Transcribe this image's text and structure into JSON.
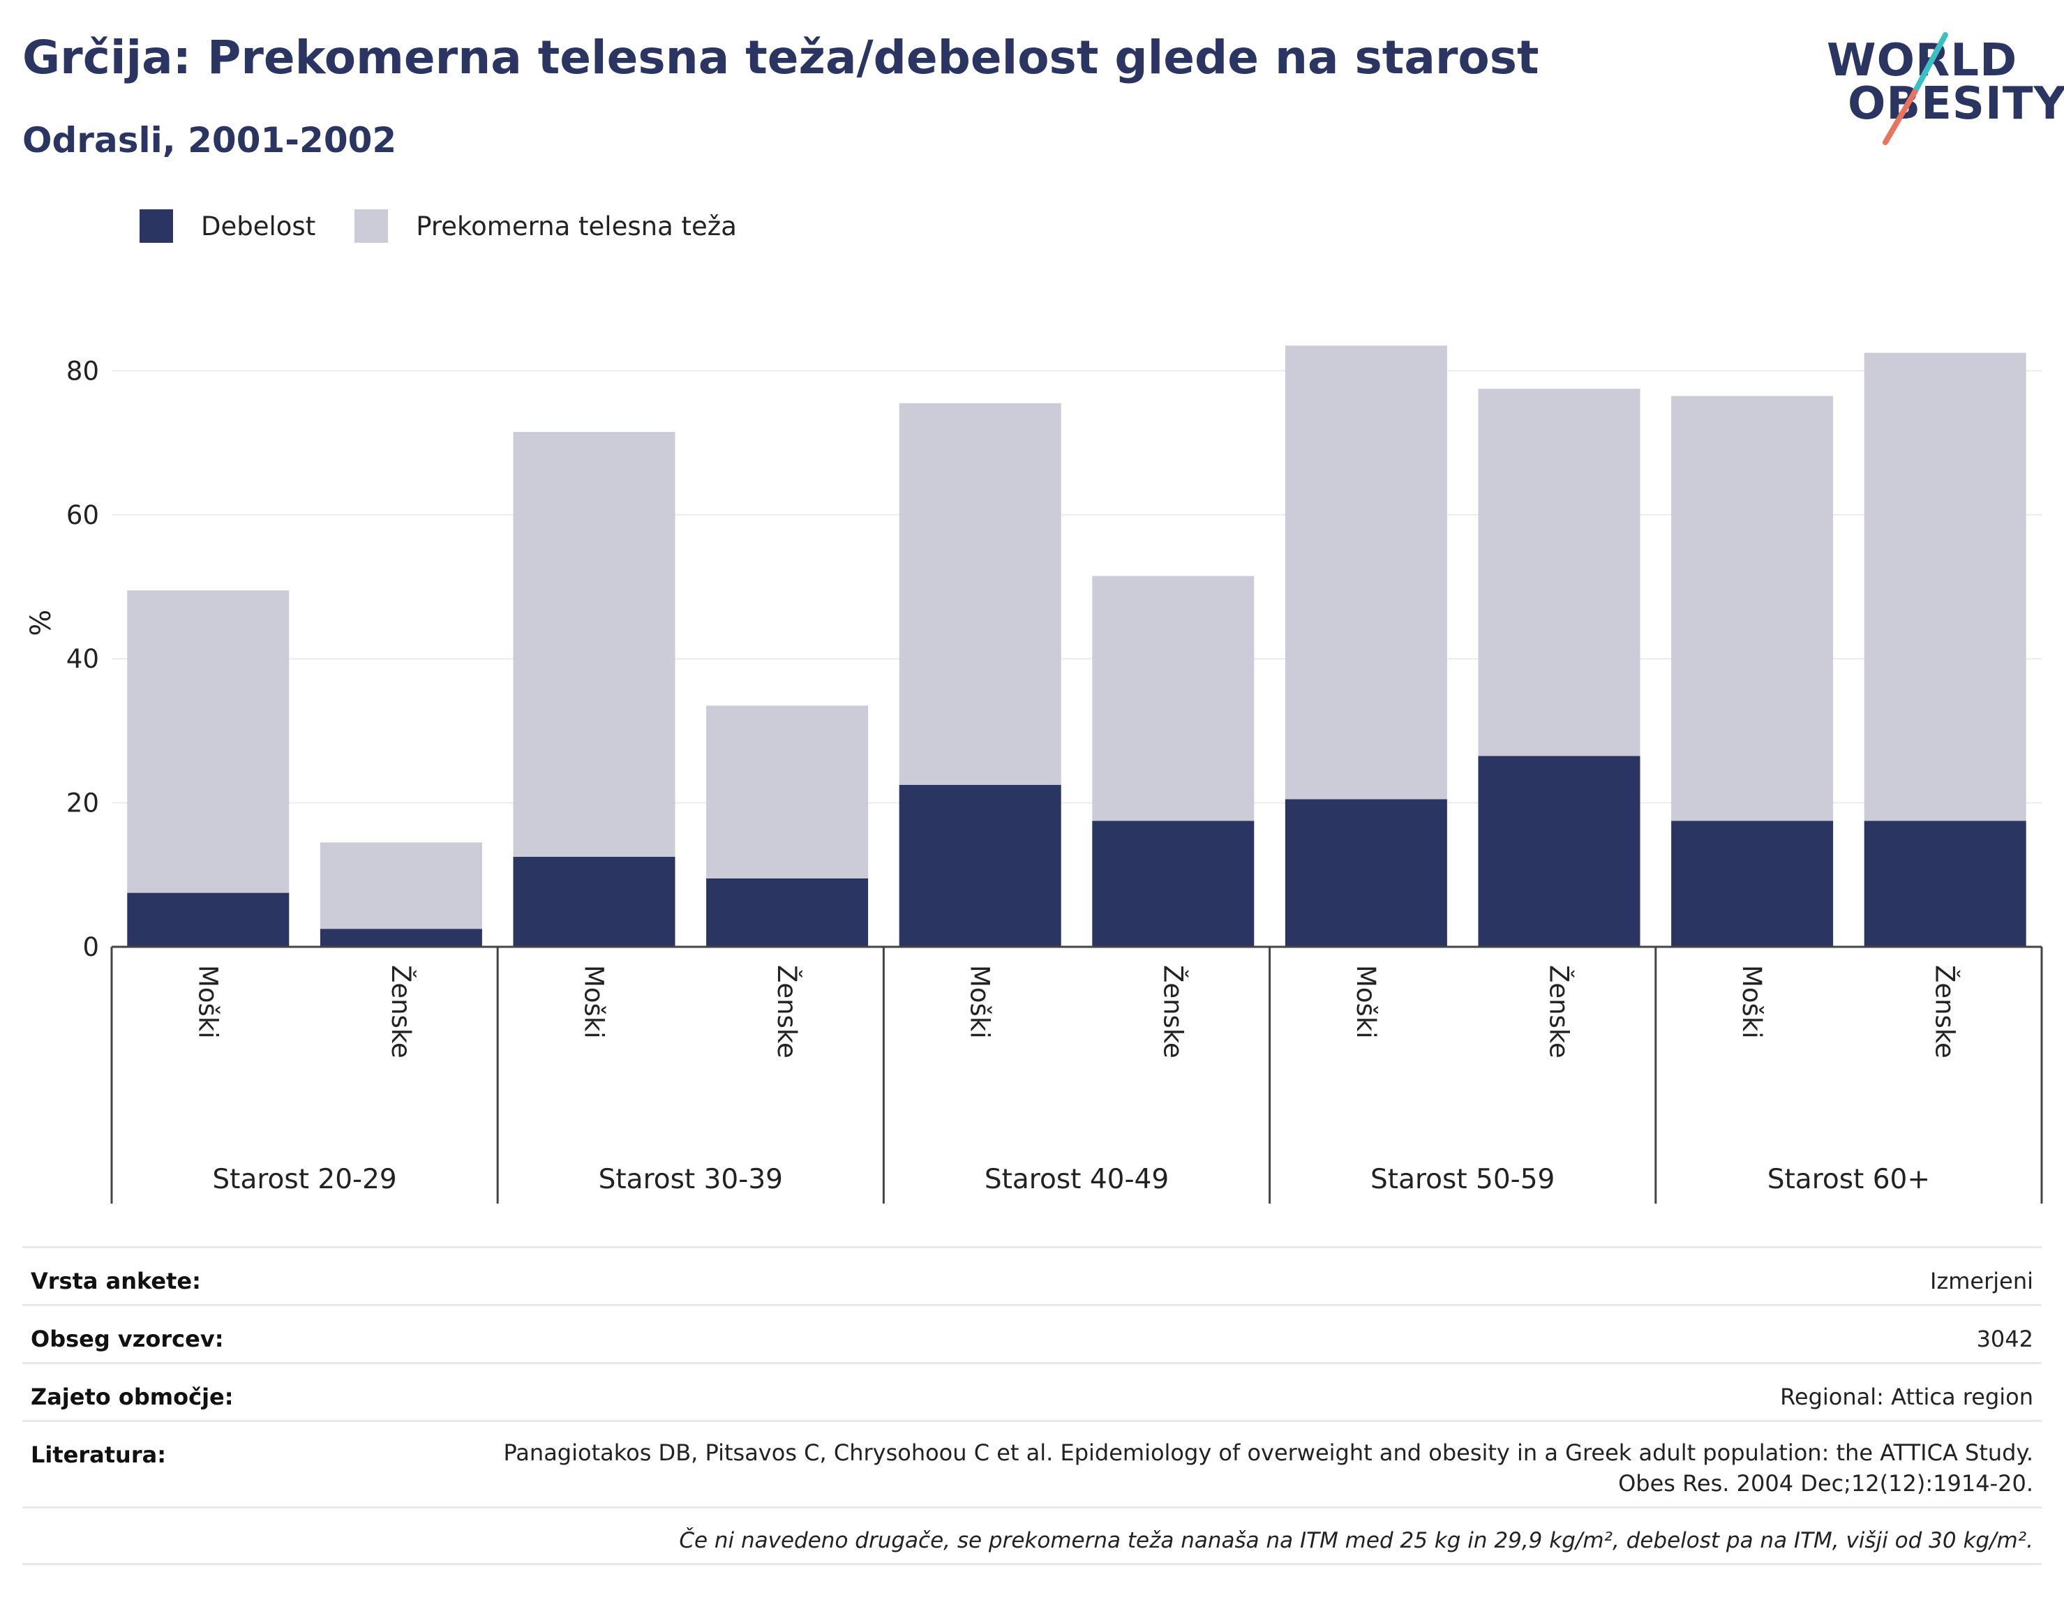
{
  "header": {
    "title": "Grčija: Prekomerna telesna teža/debelost glede na starost",
    "subtitle": "Odrasli, 2001-2002"
  },
  "logo": {
    "line1": "WORLD",
    "line2": "OBESITY",
    "colors": {
      "text": "#2b3562",
      "stroke_top": "#3cbfc4",
      "stroke_bottom": "#e8735f"
    }
  },
  "legend": {
    "items": [
      {
        "label": "Debelost",
        "color": "#2b3562"
      },
      {
        "label": "Prekomerna telesna teža",
        "color": "#cbccd8"
      }
    ]
  },
  "chart_data": {
    "type": "bar",
    "stacked": true,
    "ylabel": "%",
    "ylim": [
      0,
      90
    ],
    "yticks": [
      0,
      20,
      40,
      60,
      80
    ],
    "grid": true,
    "legend_position": "top-left",
    "groups": [
      {
        "label": "Starost 20-29",
        "categories": [
          "Moški",
          "Ženske"
        ]
      },
      {
        "label": "Starost 30-39",
        "categories": [
          "Moški",
          "Ženske"
        ]
      },
      {
        "label": "Starost 40-49",
        "categories": [
          "Moški",
          "Ženske"
        ]
      },
      {
        "label": "Starost 50-59",
        "categories": [
          "Moški",
          "Ženske"
        ]
      },
      {
        "label": "Starost 60+",
        "categories": [
          "Moški",
          "Ženske"
        ]
      }
    ],
    "series": [
      {
        "name": "Debelost",
        "color": "#2b3562",
        "values": [
          7.5,
          2.5,
          12.5,
          9.5,
          22.5,
          17.5,
          20.5,
          26.5,
          17.5,
          17.5
        ]
      },
      {
        "name": "Prekomerna telesna teža",
        "color": "#cbccd8",
        "values": [
          42,
          12,
          59,
          24,
          53,
          34,
          63,
          51,
          59,
          65
        ]
      }
    ]
  },
  "meta": {
    "survey_type": {
      "label": "Vrsta ankete:",
      "value": "Izmerjeni"
    },
    "sample_size": {
      "label": "Obseg vzorcev:",
      "value": "3042"
    },
    "area": {
      "label": "Zajeto območje:",
      "value": "Regional: Attica region"
    },
    "reference": {
      "label": "Literatura:",
      "value": "Panagiotakos DB, Pitsavos C, Chrysohoou C et al. Epidemiology of overweight and obesity in a Greek adult population: the ATTICA Study. Obes Res. 2004 Dec;12(12):1914-20."
    },
    "note": "Če ni navedeno drugače, se prekomerna teža nanaša na ITM med 25 kg in 29,9 kg/m², debelost pa na ITM, višji od 30 kg/m²."
  }
}
